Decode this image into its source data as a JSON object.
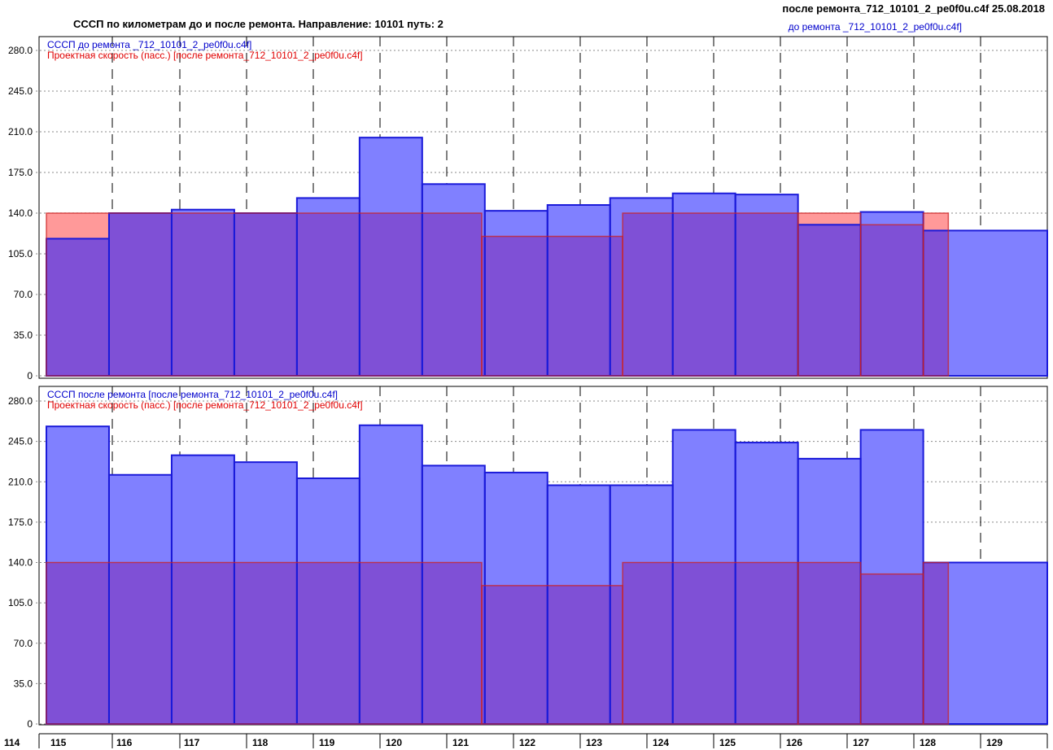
{
  "header": {
    "title": "СССП по километрам до и после ремонта. Направление: 10101 путь: 2",
    "file_after": "после ремонта_712_10101_2_pe0f0u.c4f 25.08.2018",
    "file_before": "до ремонта _712_10101_2_pe0f0u.c4f]"
  },
  "colors": {
    "ssp_fill": "#8080ff",
    "ssp_stroke": "#1a1ad9",
    "design_fill": "#ff9999",
    "design_stroke": "#cc2222",
    "overlap_fill": "#7f50d6"
  },
  "chart_data": [
    {
      "type": "bar",
      "panel": "top",
      "legend": [
        "СССП до ремонта _712_10101_2_pe0f0u.c4f]",
        "Проектная скорость (пасс.) [после ремонта_712_10101_2_pe0f0u.c4f]"
      ],
      "yticks": [
        "280.0",
        "245.0",
        "210.0",
        "175.0",
        "140.0",
        "105.0",
        "70.0",
        "35.0",
        "0"
      ],
      "ylim": [
        0,
        280
      ],
      "xlim": [
        114,
        129.98
      ],
      "grid": true,
      "series": [
        {
          "role": "ssp",
          "bars": [
            {
              "x0": 114.0,
              "x1": 115.0,
              "v": 118
            },
            {
              "x0": 115.0,
              "x1": 116.0,
              "v": 140
            },
            {
              "x0": 116.0,
              "x1": 117.0,
              "v": 143
            },
            {
              "x0": 117.0,
              "x1": 118.0,
              "v": 140
            },
            {
              "x0": 118.0,
              "x1": 119.0,
              "v": 153
            },
            {
              "x0": 119.0,
              "x1": 120.0,
              "v": 205
            },
            {
              "x0": 120.0,
              "x1": 121.0,
              "v": 165
            },
            {
              "x0": 121.0,
              "x1": 122.0,
              "v": 142
            },
            {
              "x0": 122.0,
              "x1": 123.0,
              "v": 147
            },
            {
              "x0": 123.0,
              "x1": 124.0,
              "v": 153
            },
            {
              "x0": 124.0,
              "x1": 125.0,
              "v": 157
            },
            {
              "x0": 125.0,
              "x1": 126.0,
              "v": 156
            },
            {
              "x0": 126.0,
              "x1": 127.0,
              "v": 130
            },
            {
              "x0": 127.0,
              "x1": 128.0,
              "v": 141
            },
            {
              "x0": 128.0,
              "x1": 129.98,
              "v": 125
            }
          ]
        },
        {
          "role": "design",
          "bars": [
            {
              "x0": 114.0,
              "x1": 120.95,
              "v": 140
            },
            {
              "x0": 120.95,
              "x1": 123.2,
              "v": 120
            },
            {
              "x0": 123.2,
              "x1": 126.0,
              "v": 140
            },
            {
              "x0": 126.0,
              "x1": 127.0,
              "v": 140
            },
            {
              "x0": 127.0,
              "x1": 128.0,
              "v": 130
            },
            {
              "x0": 128.0,
              "x1": 128.4,
              "v": 140
            }
          ]
        }
      ]
    },
    {
      "type": "bar",
      "panel": "bottom",
      "legend": [
        "СССП после ремонта [после ремонта_712_10101_2_pe0f0u.c4f]",
        "Проектная скорость (пасс.) [после ремонта_712_10101_2_pe0f0u.c4f]"
      ],
      "yticks": [
        "280.0",
        "245.0",
        "210.0",
        "175.0",
        "140.0",
        "105.0",
        "70.0",
        "35.0",
        "0"
      ],
      "ylim": [
        0,
        280
      ],
      "xlim": [
        114,
        129.98
      ],
      "grid": true,
      "xticks": [
        "114",
        "115",
        "116",
        "117",
        "118",
        "119",
        "120",
        "121",
        "122",
        "123",
        "124",
        "125",
        "126",
        "127",
        "128",
        "129"
      ],
      "series": [
        {
          "role": "ssp",
          "bars": [
            {
              "x0": 114.0,
              "x1": 115.0,
              "v": 258
            },
            {
              "x0": 115.0,
              "x1": 116.0,
              "v": 216
            },
            {
              "x0": 116.0,
              "x1": 117.0,
              "v": 233
            },
            {
              "x0": 117.0,
              "x1": 118.0,
              "v": 227
            },
            {
              "x0": 118.0,
              "x1": 119.0,
              "v": 213
            },
            {
              "x0": 119.0,
              "x1": 120.0,
              "v": 259
            },
            {
              "x0": 120.0,
              "x1": 121.0,
              "v": 224
            },
            {
              "x0": 121.0,
              "x1": 122.0,
              "v": 218
            },
            {
              "x0": 122.0,
              "x1": 123.0,
              "v": 207
            },
            {
              "x0": 123.0,
              "x1": 124.0,
              "v": 207
            },
            {
              "x0": 124.0,
              "x1": 125.0,
              "v": 255
            },
            {
              "x0": 125.0,
              "x1": 126.0,
              "v": 244
            },
            {
              "x0": 126.0,
              "x1": 127.0,
              "v": 230
            },
            {
              "x0": 127.0,
              "x1": 128.0,
              "v": 255
            },
            {
              "x0": 128.0,
              "x1": 129.98,
              "v": 140
            }
          ]
        },
        {
          "role": "design",
          "bars": [
            {
              "x0": 114.0,
              "x1": 120.95,
              "v": 140
            },
            {
              "x0": 120.95,
              "x1": 123.2,
              "v": 120
            },
            {
              "x0": 123.2,
              "x1": 126.0,
              "v": 140
            },
            {
              "x0": 126.0,
              "x1": 127.0,
              "v": 140
            },
            {
              "x0": 127.0,
              "x1": 128.0,
              "v": 130
            },
            {
              "x0": 128.0,
              "x1": 128.4,
              "v": 140
            }
          ]
        }
      ]
    }
  ]
}
